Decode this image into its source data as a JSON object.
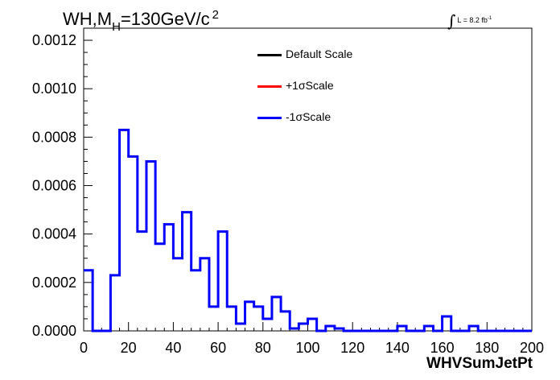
{
  "chart_data": {
    "type": "histogram",
    "title": "WH,M",
    "title_sub": "H",
    "title_rest": "=130GeV/c",
    "title_sup": "2",
    "luminosity": {
      "integral_symbol": "∫",
      "label": "L = 8.2 fb",
      "sup": "-1"
    },
    "xlabel": "WHVSumJetPt",
    "ylabel": "",
    "xlim": [
      0,
      200
    ],
    "ylim": [
      0,
      0.00125
    ],
    "x_ticks": [
      "0",
      "20",
      "40",
      "60",
      "80",
      "100",
      "120",
      "140",
      "160",
      "180",
      "200"
    ],
    "y_ticks": [
      "0.0000",
      "0.0002",
      "0.0004",
      "0.0006",
      "0.0008",
      "0.0010",
      "0.0012"
    ],
    "bin_width": 4,
    "legend": [
      {
        "label": "Default Scale",
        "color": "#000000"
      },
      {
        "label": "+1σScale",
        "color": "#ff0000"
      },
      {
        "label": "-1σScale",
        "color": "#0000ff"
      }
    ],
    "series": [
      {
        "name": "-1σScale",
        "color": "#0000ff",
        "values": [
          0.00025,
          0.0,
          0.0,
          0.00023,
          0.00083,
          0.00072,
          0.00041,
          0.0007,
          0.00036,
          0.00044,
          0.0003,
          0.00049,
          0.00025,
          0.0003,
          0.0001,
          0.00041,
          0.0001,
          3e-05,
          0.00012,
          0.0001,
          5e-05,
          0.00014,
          8e-05,
          1e-05,
          3e-05,
          5e-05,
          0.0,
          2e-05,
          1e-05,
          0.0,
          0.0,
          0.0,
          0.0,
          0.0,
          0.0,
          2e-05,
          0.0,
          0.0,
          2e-05,
          0.0,
          6e-05,
          0.0,
          0.0,
          2e-05,
          0.0,
          0.0,
          0.0,
          0.0,
          0.0,
          0.0
        ]
      }
    ]
  }
}
